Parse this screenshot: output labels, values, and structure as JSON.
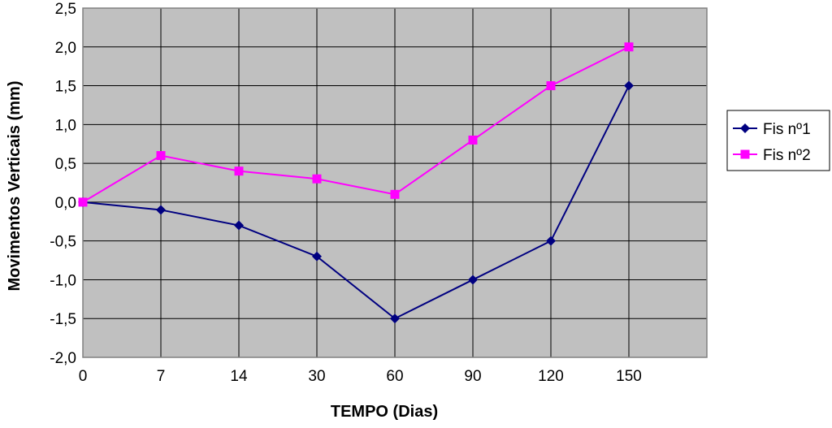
{
  "chart_data": {
    "type": "line",
    "title": "",
    "xlabel": "TEMPO (Dias)",
    "ylabel": "Movimentos Verticais (mm)",
    "categories": [
      "0",
      "7",
      "14",
      "30",
      "60",
      "90",
      "120",
      "150"
    ],
    "ylim": [
      -2.0,
      2.5
    ],
    "yticks": [
      -2.0,
      -1.5,
      -1.0,
      -0.5,
      0.0,
      0.5,
      1.0,
      1.5,
      2.0,
      2.5
    ],
    "ytick_labels": [
      "-2,0",
      "-1,5",
      "-1,0",
      "-0,5",
      "0,0",
      "0,5",
      "1,0",
      "1,5",
      "2,0",
      "2,5"
    ],
    "grid": true,
    "plot_background": "#c0c0c0",
    "legend_position": "right",
    "series": [
      {
        "name": "Fis nº1",
        "color": "#000080",
        "marker": "diamond",
        "values": [
          0.0,
          -0.1,
          -0.3,
          -0.7,
          -1.5,
          -1.0,
          -0.5,
          1.5
        ]
      },
      {
        "name": "Fis nº2",
        "color": "#ff00ff",
        "marker": "square",
        "values": [
          0.0,
          0.6,
          0.4,
          0.3,
          0.1,
          0.8,
          1.5,
          2.0
        ]
      }
    ]
  }
}
